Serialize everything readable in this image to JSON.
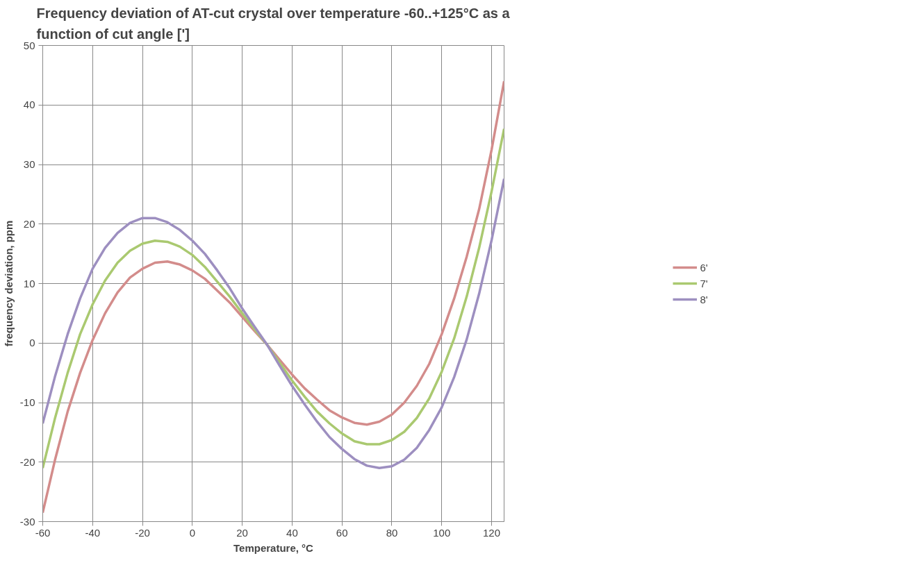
{
  "chart_data": {
    "type": "line",
    "title": "Frequency deviation of AT-cut crystal over temperature -60..+125°C as a function of cut angle [']",
    "xlabel": "Temperature, °C",
    "ylabel": "frequency deviation, ppm",
    "x": [
      -60,
      -55,
      -50,
      -45,
      -40,
      -35,
      -30,
      -25,
      -20,
      -15,
      -10,
      -5,
      0,
      5,
      10,
      15,
      20,
      25,
      30,
      35,
      40,
      45,
      50,
      55,
      60,
      65,
      70,
      75,
      80,
      85,
      90,
      95,
      100,
      105,
      110,
      115,
      120,
      125
    ],
    "series": [
      {
        "name": "6'",
        "color": "#d38c8b",
        "values": [
          -28.5,
          -19.5,
          -11.5,
          -5,
          0.5,
          5,
          8.5,
          11,
          12.5,
          13.5,
          13.7,
          13.2,
          12.2,
          10.8,
          8.8,
          6.8,
          4.4,
          2,
          -0.3,
          -2.8,
          -5.3,
          -7.6,
          -9.5,
          -11.3,
          -12.5,
          -13.4,
          -13.7,
          -13.2,
          -12,
          -10,
          -7.2,
          -3.5,
          1.5,
          7.5,
          14.5,
          22.5,
          32.5,
          44
        ]
      },
      {
        "name": "7'",
        "color": "#aac970",
        "values": [
          -21,
          -12.5,
          -5,
          1.5,
          6.5,
          10.5,
          13.5,
          15.5,
          16.7,
          17.2,
          17,
          16.2,
          14.8,
          12.8,
          10.3,
          7.8,
          5,
          2.3,
          -0.3,
          -3.3,
          -6.3,
          -9,
          -11.5,
          -13.5,
          -15.2,
          -16.5,
          -17,
          -17,
          -16.3,
          -14.9,
          -12.6,
          -9.3,
          -4.8,
          0.8,
          7.8,
          16,
          25.5,
          36
        ]
      },
      {
        "name": "8'",
        "color": "#9d8fc0",
        "values": [
          -13.5,
          -5.5,
          1.5,
          7.5,
          12.5,
          16,
          18.5,
          20.2,
          21,
          21,
          20.3,
          19,
          17.2,
          15,
          12.2,
          9.2,
          5.8,
          2.7,
          -0.3,
          -3.8,
          -7.2,
          -10.3,
          -13.2,
          -15.8,
          -17.8,
          -19.5,
          -20.6,
          -21,
          -20.7,
          -19.6,
          -17.6,
          -14.6,
          -10.8,
          -5.7,
          0.6,
          8.3,
          17.3,
          27.6
        ]
      }
    ],
    "xlim": [
      -60,
      125
    ],
    "xticks": [
      -60,
      -40,
      -20,
      0,
      20,
      40,
      60,
      80,
      100,
      120
    ],
    "ylim": [
      -30,
      50
    ],
    "yticks": [
      -30,
      -20,
      -10,
      0,
      10,
      20,
      30,
      40,
      50
    ],
    "grid": true,
    "legend": "right",
    "marker": "none",
    "line_style": "solid"
  }
}
